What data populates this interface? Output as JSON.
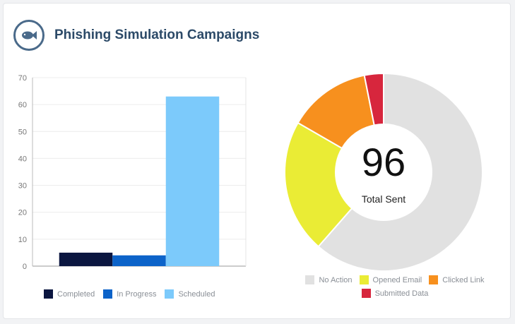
{
  "header": {
    "title": "Phishing Simulation Campaigns",
    "logo_icon": "fish-icon"
  },
  "colors": {
    "completed": "#0b1640",
    "in_progress": "#0c63c9",
    "scheduled": "#7ccafb",
    "no_action": "#e1e1e1",
    "opened_email": "#eaec35",
    "clicked_link": "#f7901e",
    "submitted_data": "#d7263d"
  },
  "chart_data": [
    {
      "type": "bar",
      "categories": [
        "Completed",
        "In Progress",
        "Scheduled"
      ],
      "values": [
        5,
        4,
        63
      ],
      "ylim": [
        0,
        70
      ],
      "yticks": [
        0,
        10,
        20,
        30,
        40,
        50,
        60,
        70
      ],
      "grid": true,
      "legend": "bottom",
      "legend_entries": [
        "Completed",
        "In Progress",
        "Scheduled"
      ]
    },
    {
      "type": "pie",
      "subtype": "donut",
      "labels": [
        "No Action",
        "Opened Email",
        "Clicked Link",
        "Submitted Data"
      ],
      "values": [
        59,
        21,
        13,
        3
      ],
      "center_value": "96",
      "center_label": "Total Sent",
      "legend": "bottom"
    }
  ]
}
